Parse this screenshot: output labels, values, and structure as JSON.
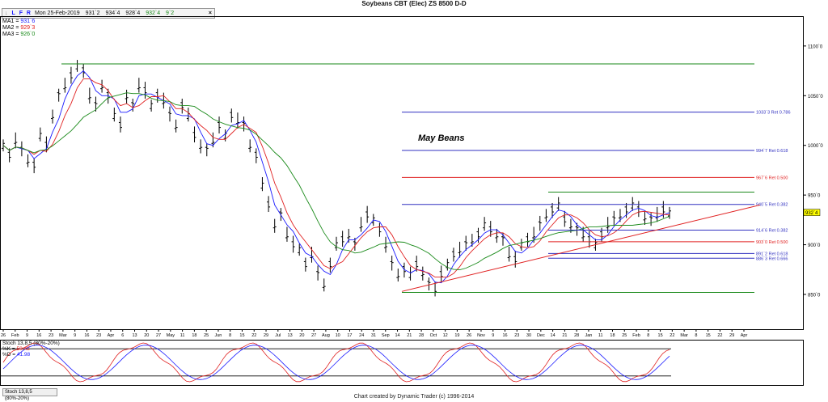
{
  "title": "Soybeans CBT (Elec) ZS 8500 D-D",
  "toolbar": {
    "icons": [
      "L",
      "F",
      "R"
    ],
    "date": "Mon 25-Feb-2019",
    "open": "931`2",
    "high": "934`4",
    "low": "928`4",
    "close": "932`4",
    "change": "9`2",
    "close_btn": "×"
  },
  "ma_legend": [
    {
      "label": "MA1 = ",
      "value": "931`6",
      "color": "#1a1aff"
    },
    {
      "label": "MA2 = ",
      "value": "929`3",
      "color": "#e02020"
    },
    {
      "label": "MA3 = ",
      "value": "926`0",
      "color": "#1a8a1a"
    }
  ],
  "stoch_legend": {
    "title": "Stoch 13,8,5 (80%-20%)",
    "k_label": "%K = ",
    "k_value": "50.43",
    "d_label": "%D = ",
    "d_value": "41.98"
  },
  "bottom_tab": "Stoch 13,8,5 (80%-20%)",
  "credit": "Chart created by Dynamic Trader  (c) 1996-2014",
  "colors": {
    "ma1": "#1a1aff",
    "ma2": "#e02020",
    "ma3": "#1a8a1a",
    "bars": "#000000",
    "fib_blue": "#3030c0",
    "fib_red": "#e02020",
    "fib_green": "#1a8a1a",
    "trend": "#e02020",
    "price_tag": "#ffff00"
  },
  "chart_data": {
    "type": "bar",
    "title": "Soybeans CBT (Elec) ZS 8500 D-D",
    "y_axis": {
      "ticks": [
        850,
        900,
        950,
        1000,
        1050,
        1100
      ],
      "tick_labels": [
        "850`0",
        "900`0",
        "950`0",
        "1000`0",
        "1050`0",
        "1100`0"
      ],
      "range": [
        815,
        1130
      ]
    },
    "x_axis": {
      "tick_labels": [
        "26",
        "Feb",
        "9",
        "16",
        "23",
        "Mar",
        "9",
        "16",
        "23",
        "Apr",
        "6",
        "13",
        "20",
        "27",
        "May",
        "11",
        "18",
        "25",
        "Jun",
        "8",
        "15",
        "22",
        "29",
        "Jul",
        "13",
        "20",
        "27",
        "Aug",
        "10",
        "17",
        "24",
        "31",
        "Sep",
        "14",
        "21",
        "28",
        "Oct",
        "12",
        "19",
        "26",
        "Nov",
        "9",
        "16",
        "23",
        "30",
        "Dec",
        "14",
        "21",
        "28",
        "Jan",
        "11",
        "18",
        "25",
        "Feb",
        "8",
        "15",
        "22",
        "Mar",
        "8",
        "15",
        "22",
        "29",
        "Apr"
      ]
    },
    "annotation": "May Beans",
    "last_price": "932`4",
    "fib_levels": [
      {
        "label": "1033`3 Ret 0.786",
        "value": 1033.4,
        "color": "blue"
      },
      {
        "label": "994`7 Ret 0.618",
        "value": 994.9,
        "color": "blue"
      },
      {
        "label": "967`6 Ret 0.500",
        "value": 967.75,
        "color": "red"
      },
      {
        "label": "940`5 Ret 0.382",
        "value": 940.6,
        "color": "blue"
      },
      {
        "label": "914`6 Ret 0.382",
        "value": 914.75,
        "color": "blue"
      },
      {
        "label": "903`0 Ret 0.500",
        "value": 903.0,
        "color": "red"
      },
      {
        "label": "891`2 Ret 0.618",
        "value": 891.25,
        "color": "blue"
      },
      {
        "label": "886`3 Ret 0.666",
        "value": 886.4,
        "color": "blue"
      }
    ],
    "swing_lines": [
      {
        "value": 1082,
        "color": "green"
      },
      {
        "value": 953,
        "color": "green"
      },
      {
        "value": 852,
        "color": "green"
      }
    ],
    "trendline": {
      "from": [
        "Sep 14",
        853
      ],
      "to": [
        "Apr",
        940
      ]
    },
    "price_path": [
      1000,
      990,
      1005,
      995,
      985,
      980,
      1010,
      1000,
      1030,
      1050,
      1060,
      1070,
      1080,
      1075,
      1050,
      1040,
      1060,
      1050,
      1030,
      1020,
      1050,
      1040,
      1060,
      1055,
      1040,
      1050,
      1045,
      1030,
      1020,
      1040,
      1030,
      1010,
      1000,
      995,
      1005,
      1020,
      1010,
      1030,
      1025,
      1020,
      1000,
      990,
      960,
      940,
      920,
      930,
      910,
      900,
      895,
      880,
      890,
      870,
      860,
      880,
      900,
      905,
      910,
      900,
      920,
      930,
      925,
      915,
      900,
      880,
      870,
      875,
      870,
      880,
      872,
      860,
      855,
      870,
      880,
      890,
      895,
      900,
      905,
      910,
      920,
      915,
      910,
      905,
      890,
      885,
      900,
      905,
      910,
      920,
      930,
      935,
      940,
      925,
      920,
      915,
      910,
      905,
      900,
      910,
      920,
      925,
      930,
      935,
      940,
      935,
      928,
      925,
      930,
      935,
      932
    ],
    "stochastic": {
      "k_last": 50.43,
      "d_last": 41.98,
      "upper": 80,
      "lower": 20
    }
  }
}
